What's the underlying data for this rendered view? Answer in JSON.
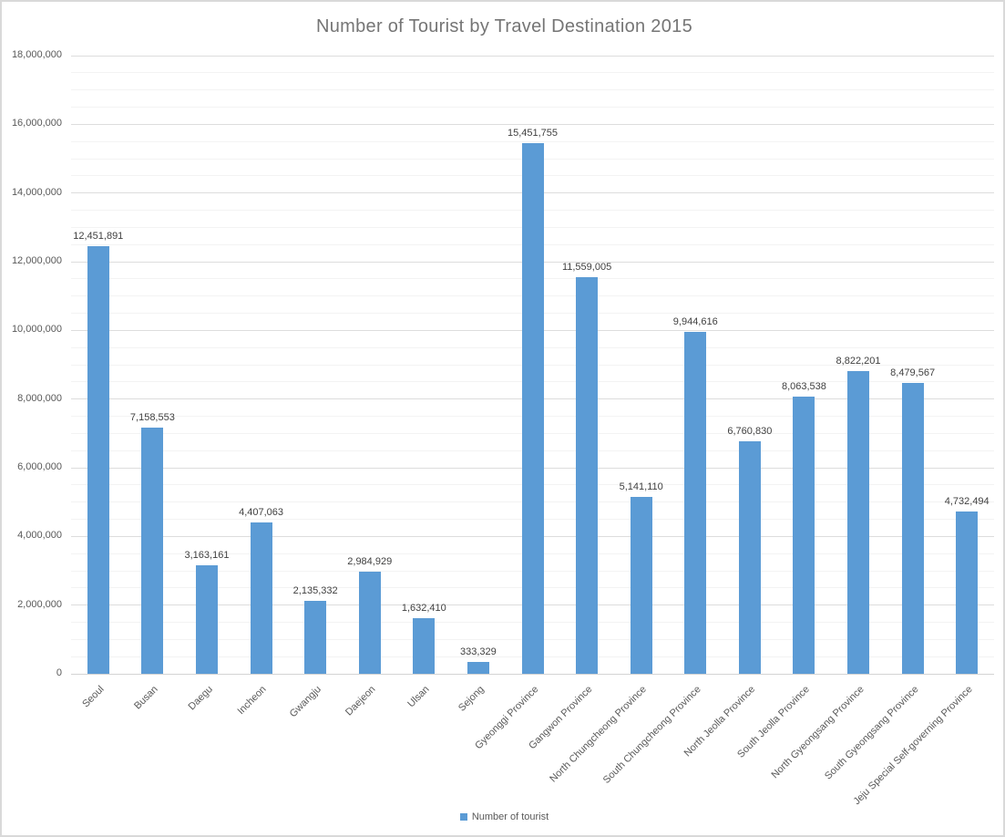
{
  "chart_data": {
    "type": "bar",
    "title": "Number of Tourist by Travel Destination 2015",
    "categories": [
      "Seoul",
      "Busan",
      "Daegu",
      "Incheon",
      "Gwangju",
      "Daejeon",
      "Ulsan",
      "Sejong",
      "Gyeonggi Province",
      "Gangwon Province",
      "North Chungcheong Province",
      "South Chungcheong Province",
      "North Jeolla Province",
      "South Jeolla Province",
      "North Gyeongsang Province",
      "South Gyeongsang Province",
      "Jeju Special Self-governing Province"
    ],
    "values": [
      12451891,
      7158553,
      3163161,
      4407063,
      2135332,
      2984929,
      1632410,
      333329,
      15451755,
      11559005,
      5141110,
      9944616,
      6760830,
      8063538,
      8822201,
      8479567,
      4732494
    ],
    "data_labels": [
      "12,451,891",
      "7,158,553",
      "3,163,161",
      "4,407,063",
      "2,135,332",
      "2,984,929",
      "1,632,410",
      "333,329",
      "15,451,755",
      "11,559,005",
      "5,141,110",
      "9,944,616",
      "6,760,830",
      "8,063,538",
      "8,822,201",
      "8,479,567",
      "4,732,494"
    ],
    "series_name": "Number of tourist",
    "xlabel": "",
    "ylabel": "",
    "ylim": [
      0,
      18000000
    ],
    "y_major_step": 2000000,
    "y_minor_step": 500000,
    "y_tick_labels": [
      "0",
      "2,000,000",
      "4,000,000",
      "6,000,000",
      "8,000,000",
      "10,000,000",
      "12,000,000",
      "14,000,000",
      "16,000,000",
      "18,000,000"
    ],
    "grid": "major+minor horizontal gridlines",
    "legend_position": "bottom-center",
    "bar_color": "#5b9bd5",
    "x_label_rotation_deg": -45
  },
  "legend": {
    "label": "Number of tourist",
    "marker_color": "#5b9bd5"
  },
  "colors": {
    "bar": "#5b9bd5",
    "major_gridline": "#dddddd",
    "minor_gridline": "#f3f3f3",
    "axis_text": "#595959",
    "data_label_text": "#404040",
    "title_text": "#757575",
    "outer_border": "#d9d9d9"
  }
}
